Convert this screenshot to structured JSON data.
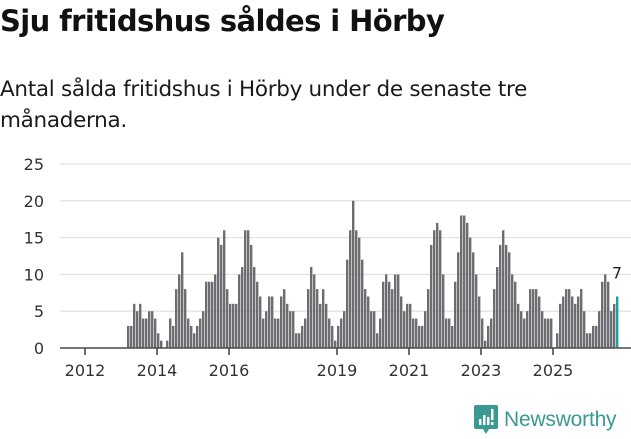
{
  "header": {
    "title": "Sju fritidshus såldes i Hörby",
    "subtitle": "Antal sålda fritidshus i Hörby under de senaste tre månaderna."
  },
  "branding": {
    "logo_label": "Newsworthy",
    "logo_color": "#3a9a93"
  },
  "colors": {
    "bar": "#6d6c71",
    "highlight": "#1aa39a",
    "grid": "#e2e2e2",
    "axis": "#4a4a4a"
  },
  "chart_data": {
    "type": "bar",
    "title": "Sju fritidshus såldes i Hörby",
    "subtitle": "Antal sålda fritidshus i Hörby under de senaste tre månaderna.",
    "xlabel": "",
    "ylabel": "",
    "ylim": [
      0,
      25
    ],
    "yticks": [
      0,
      5,
      10,
      15,
      20,
      25
    ],
    "xticks": [
      "2012",
      "2014",
      "2016",
      "2019",
      "2021",
      "2023",
      "2025"
    ],
    "grid": true,
    "legend": null,
    "annotation": {
      "label": "7",
      "target": "last bar"
    },
    "x_start": "2012-01",
    "frequency": "monthly (rolling 3-month sum)",
    "values": [
      0,
      0,
      0,
      0,
      0,
      0,
      0,
      0,
      0,
      0,
      0,
      0,
      0,
      0,
      3,
      3,
      6,
      5,
      6,
      4,
      4,
      5,
      5,
      4,
      2,
      1,
      0,
      1,
      4,
      3,
      8,
      10,
      13,
      8,
      4,
      3,
      2,
      3,
      4,
      5,
      9,
      9,
      9,
      10,
      15,
      14,
      16,
      8,
      6,
      6,
      6,
      10,
      11,
      16,
      16,
      14,
      11,
      9,
      7,
      4,
      5,
      7,
      7,
      4,
      4,
      7,
      8,
      6,
      5,
      5,
      2,
      2,
      3,
      4,
      8,
      11,
      10,
      8,
      6,
      8,
      6,
      4,
      3,
      1,
      3,
      4,
      5,
      12,
      16,
      20,
      16,
      15,
      12,
      8,
      7,
      5,
      5,
      2,
      4,
      9,
      10,
      9,
      8,
      10,
      10,
      7,
      5,
      6,
      6,
      4,
      4,
      3,
      3,
      5,
      8,
      14,
      16,
      17,
      16,
      10,
      4,
      4,
      3,
      9,
      13,
      18,
      18,
      17,
      15,
      13,
      10,
      7,
      4,
      1,
      3,
      4,
      8,
      11,
      14,
      16,
      14,
      13,
      10,
      9,
      6,
      5,
      4,
      5,
      8,
      8,
      8,
      7,
      5,
      4,
      4,
      4,
      0,
      2,
      6,
      7,
      8,
      8,
      7,
      6,
      7,
      8,
      5,
      2,
      2,
      3,
      3,
      5,
      9,
      10,
      9,
      5,
      6,
      7
    ],
    "highlight_index": "last",
    "last_value": 7
  }
}
